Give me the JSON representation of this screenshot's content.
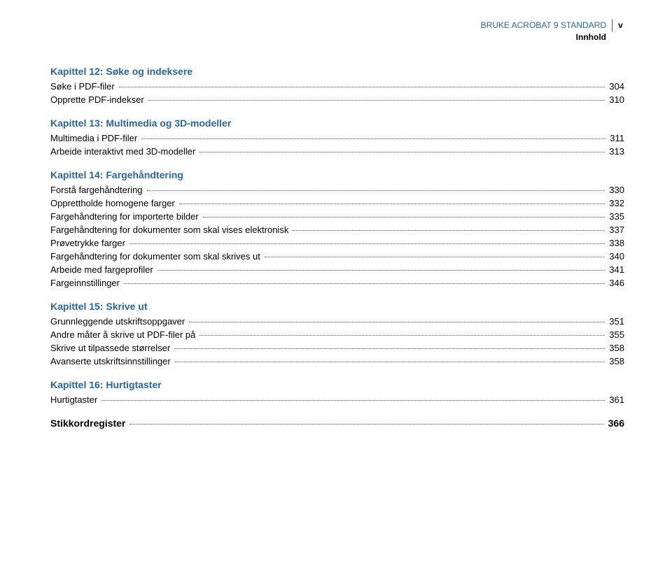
{
  "header": {
    "title": "BRUKE ACROBAT 9 STANDARD",
    "page": "v",
    "sub": "Innhold"
  },
  "chapters": [
    {
      "title": "Kapittel 12: Søke og indeksere",
      "entries": [
        {
          "label": "Søke i PDF-filer",
          "page": "304"
        },
        {
          "label": "Opprette PDF-indekser",
          "page": "310"
        }
      ]
    },
    {
      "title": "Kapittel 13: Multimedia og 3D-modeller",
      "entries": [
        {
          "label": "Multimedia i PDF-filer",
          "page": "311"
        },
        {
          "label": "Arbeide interaktivt med 3D-modeller",
          "page": "313"
        }
      ]
    },
    {
      "title": "Kapittel 14: Fargehåndtering",
      "entries": [
        {
          "label": "Forstå fargehåndtering",
          "page": "330"
        },
        {
          "label": "Opprettholde homogene farger",
          "page": "332"
        },
        {
          "label": "Fargehåndtering for importerte bilder",
          "page": "335"
        },
        {
          "label": "Fargehåndtering for dokumenter som skal vises elektronisk",
          "page": "337"
        },
        {
          "label": "Prøvetrykke farger",
          "page": "338"
        },
        {
          "label": "Fargehåndtering for dokumenter som skal skrives ut",
          "page": "340"
        },
        {
          "label": "Arbeide med fargeprofiler",
          "page": "341"
        },
        {
          "label": "Fargeinnstillinger",
          "page": "346"
        }
      ]
    },
    {
      "title": "Kapittel 15: Skrive ut",
      "entries": [
        {
          "label": "Grunnleggende utskriftsoppgaver",
          "page": "351"
        },
        {
          "label": "Andre måter å skrive ut PDF-filer på",
          "page": "355"
        },
        {
          "label": "Skrive ut tilpassede størrelser",
          "page": "358"
        },
        {
          "label": "Avanserte utskriftsinnstillinger",
          "page": "358"
        }
      ]
    },
    {
      "title": "Kapittel 16: Hurtigtaster",
      "entries": [
        {
          "label": "Hurtigtaster",
          "page": "361"
        }
      ]
    }
  ],
  "index": {
    "label": "Stikkordregister",
    "page": "366"
  }
}
